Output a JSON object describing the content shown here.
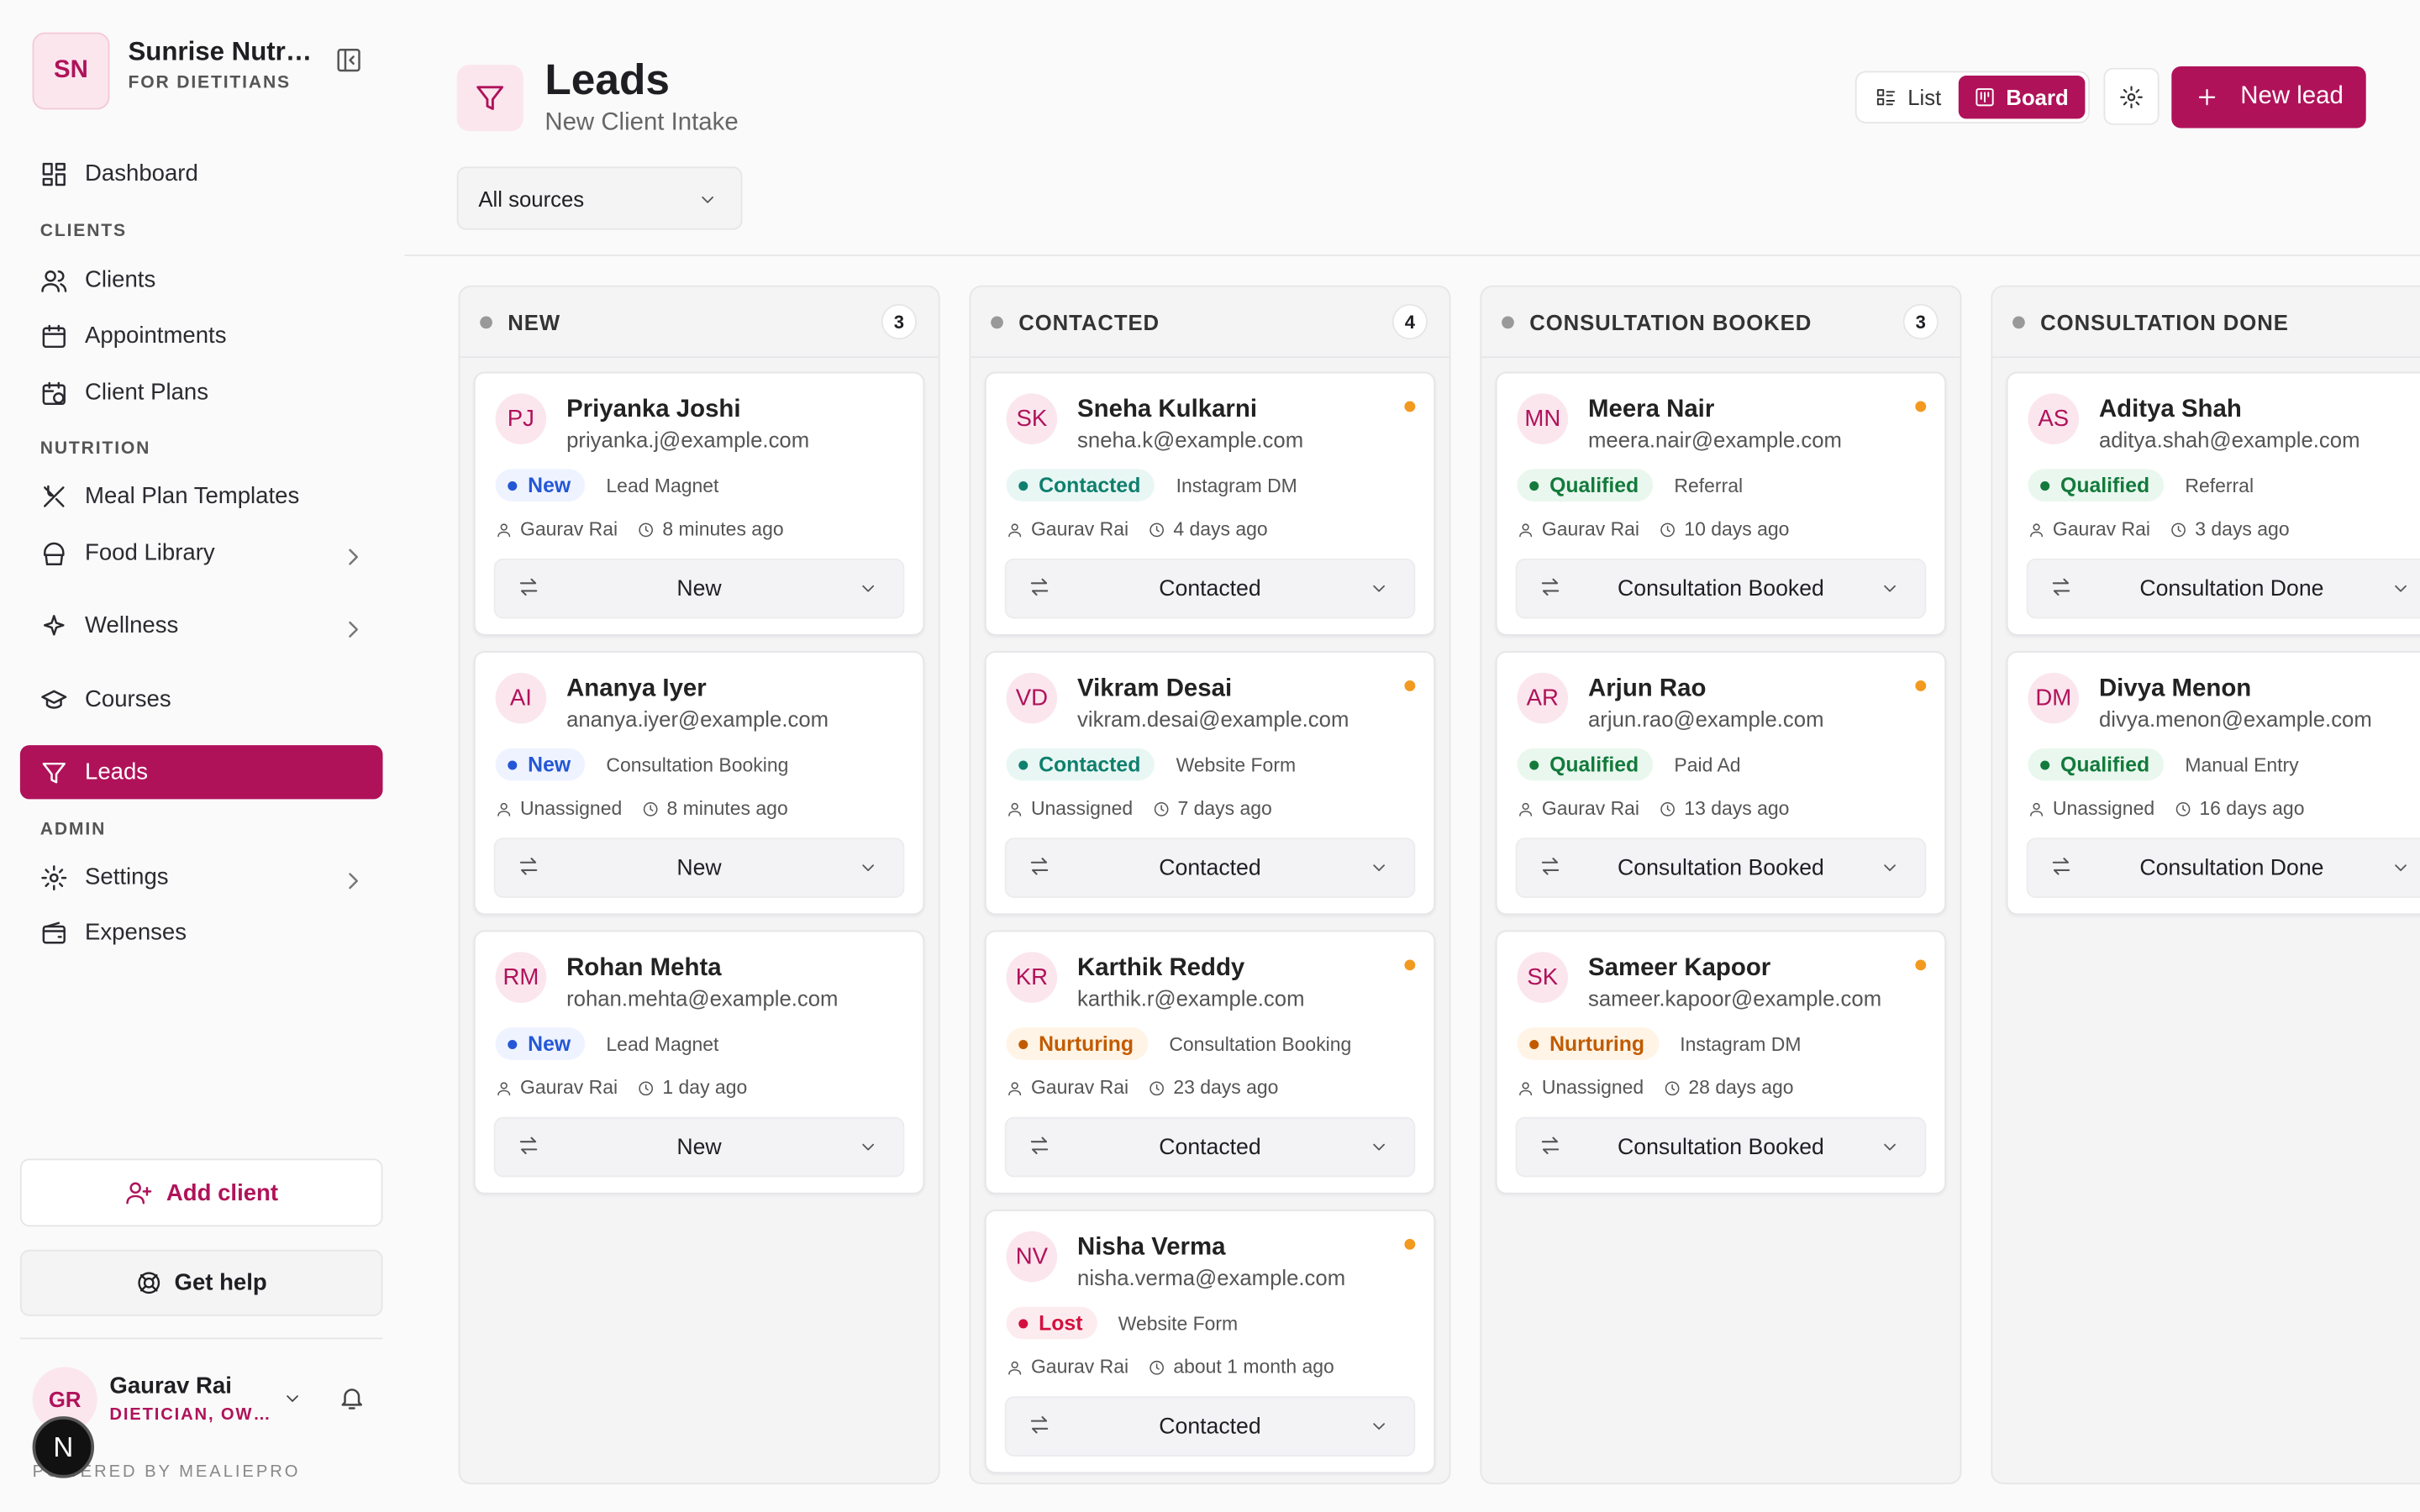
{
  "sidebar": {
    "brand": {
      "initials": "SN",
      "name": "Sunrise Nutr…",
      "subtitle": "FOR DIETITIANS"
    },
    "nav": [
      {
        "label": "Dashboard",
        "icon": "grid"
      },
      {
        "heading": "CLIENTS"
      },
      {
        "label": "Clients",
        "icon": "users"
      },
      {
        "label": "Appointments",
        "icon": "calendar"
      },
      {
        "label": "Client Plans",
        "icon": "plan"
      },
      {
        "heading": "NUTRITION"
      },
      {
        "label": "Meal Plan Templates",
        "icon": "fork"
      },
      {
        "label": "Food Library",
        "icon": "food",
        "chevron": true
      },
      {
        "label": "Wellness",
        "icon": "spark",
        "chevron": true
      },
      {
        "label": "Courses",
        "icon": "cap"
      },
      {
        "label": "Leads",
        "icon": "funnel",
        "active": true
      },
      {
        "heading": "ADMIN"
      },
      {
        "label": "Settings",
        "icon": "gear",
        "chevron": true
      },
      {
        "label": "Expenses",
        "icon": "wallet"
      }
    ],
    "actions": [
      "Add client",
      "Get help"
    ],
    "user": {
      "initials": "GR",
      "name": "Gaurav Rai",
      "role": "DIETICIAN, OW…"
    },
    "footer": "POWERED BY MEALIEPRO",
    "badge": "N"
  },
  "header": {
    "title": "Leads",
    "subtitle": "New Client Intake",
    "views": [
      "List",
      "Board"
    ],
    "active_view": 1,
    "new_button": "New lead",
    "filter": "All sources"
  },
  "board": {
    "columns": [
      {
        "title": "NEW",
        "count": 3,
        "cards": [
          {
            "initials": "PJ",
            "name": "Priyanka Joshi",
            "email": "priyanka.j@example.com",
            "status": "New",
            "source": "Lead Magnet",
            "owner": "Gaurav Rai",
            "time": "8 minutes ago",
            "stage": "New"
          },
          {
            "initials": "AI",
            "name": "Ananya Iyer",
            "email": "ananya.iyer@example.com",
            "status": "New",
            "source": "Consultation Booking",
            "owner": "Unassigned",
            "time": "8 minutes ago",
            "stage": "New"
          },
          {
            "initials": "RM",
            "name": "Rohan Mehta",
            "email": "rohan.mehta@example.com",
            "status": "New",
            "source": "Lead Magnet",
            "owner": "Gaurav Rai",
            "time": "1 day ago",
            "stage": "New"
          }
        ]
      },
      {
        "title": "CONTACTED",
        "count": 4,
        "cards": [
          {
            "initials": "SK",
            "name": "Sneha Kulkarni",
            "email": "sneha.k@example.com",
            "status": "Contacted",
            "source": "Instagram DM",
            "owner": "Gaurav Rai",
            "time": "4 days ago",
            "stage": "Contacted",
            "flag": true
          },
          {
            "initials": "VD",
            "name": "Vikram Desai",
            "email": "vikram.desai@example.com",
            "status": "Contacted",
            "source": "Website Form",
            "owner": "Unassigned",
            "time": "7 days ago",
            "stage": "Contacted",
            "flag": true
          },
          {
            "initials": "KR",
            "name": "Karthik Reddy",
            "email": "karthik.r@example.com",
            "status": "Nurturing",
            "source": "Consultation Booking",
            "owner": "Gaurav Rai",
            "time": "23 days ago",
            "stage": "Contacted",
            "flag": true
          },
          {
            "initials": "NV",
            "name": "Nisha Verma",
            "email": "nisha.verma@example.com",
            "status": "Lost",
            "source": "Website Form",
            "owner": "Gaurav Rai",
            "time": "about 1 month ago",
            "stage": "Contacted",
            "flag": true
          }
        ]
      },
      {
        "title": "CONSULTATION BOOKED",
        "count": 3,
        "cards": [
          {
            "initials": "MN",
            "name": "Meera Nair",
            "email": "meera.nair@example.com",
            "status": "Qualified",
            "source": "Referral",
            "owner": "Gaurav Rai",
            "time": "10 days ago",
            "stage": "Consultation Booked",
            "flag": true
          },
          {
            "initials": "AR",
            "name": "Arjun Rao",
            "email": "arjun.rao@example.com",
            "status": "Qualified",
            "source": "Paid Ad",
            "owner": "Gaurav Rai",
            "time": "13 days ago",
            "stage": "Consultation Booked",
            "flag": true
          },
          {
            "initials": "SK",
            "name": "Sameer Kapoor",
            "email": "sameer.kapoor@example.com",
            "status": "Nurturing",
            "source": "Instagram DM",
            "owner": "Unassigned",
            "time": "28 days ago",
            "stage": "Consultation Booked",
            "flag": true
          }
        ]
      },
      {
        "title": "CONSULTATION DONE",
        "cards": [
          {
            "initials": "AS",
            "name": "Aditya Shah",
            "email": "aditya.shah@example.com",
            "status": "Qualified",
            "source": "Referral",
            "owner": "Gaurav Rai",
            "time": "3 days ago",
            "stage": "Consultation Done"
          },
          {
            "initials": "DM",
            "name": "Divya Menon",
            "email": "divya.menon@example.com",
            "status": "Qualified",
            "source": "Manual Entry",
            "owner": "Unassigned",
            "time": "16 days ago",
            "stage": "Consultation Done"
          }
        ]
      }
    ]
  }
}
